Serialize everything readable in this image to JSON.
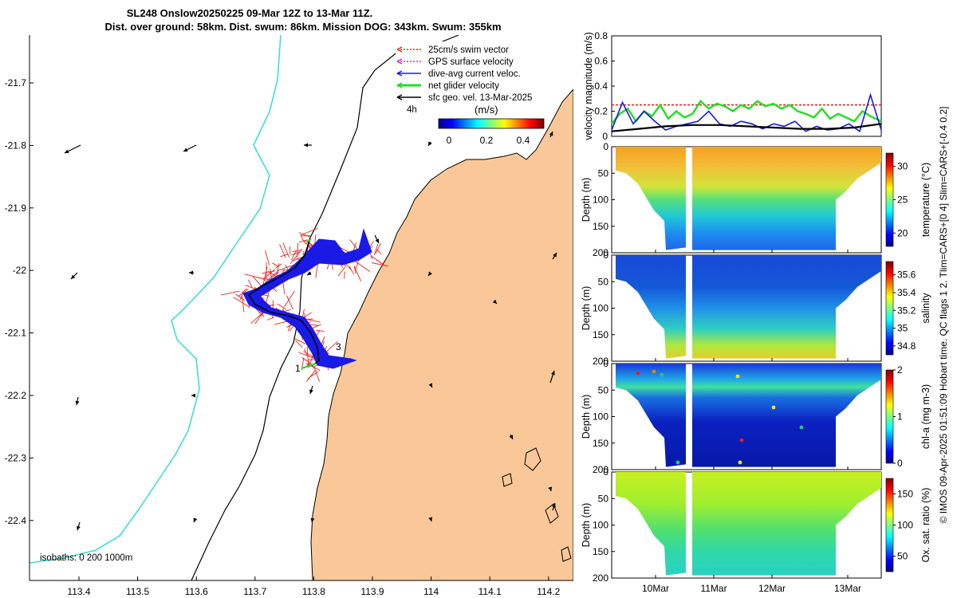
{
  "title": {
    "line1": "SL248 Onslow20250225 09-Mar 12Z to 13-Mar 11Z.",
    "line2": "Dist. over ground: 58km. Dist. swum: 86km. Mission DOG: 343km. Swum: 355km"
  },
  "footer": "© IMOS 09-Apr-2025 01:51:09 Hobart time. QC flags 1  2. Tlim=CARS+[0 4] Slim=CARS+[-0.4 0.2]",
  "map": {
    "x_ticks": [
      "113.4",
      "113.5",
      "113.6",
      "113.7",
      "113.8",
      "113.9",
      "114",
      "114.1",
      "114.2"
    ],
    "y_ticks": [
      "-21.7",
      "-21.8",
      "-21.9",
      "-22",
      "-22.1",
      "-22.2",
      "-22.3",
      "-22.4"
    ],
    "legend": [
      {
        "label": "25cm/s swim vector",
        "color": "#e8251e"
      },
      {
        "label": "GPS surface velocity",
        "color": "#e020e0"
      },
      {
        "label": "dive-avg current veloc.",
        "color": "#1a1ae6"
      },
      {
        "label": "net glider velocity",
        "color": "#22dd22"
      },
      {
        "label": "sfc geo. vel. 13-Mar-2025",
        "color": "#000000"
      }
    ],
    "interval_label": "4h",
    "colorbar_title": "(m/s)",
    "colorbar_ticks": [
      "0",
      "0.2",
      "0.4"
    ],
    "isobath_label": "isobaths: 0   200  1000m",
    "track_markers": [
      "1",
      "3"
    ],
    "land_color": "#fac898",
    "isobath_color": "#35dcd6"
  },
  "chart_data": [
    {
      "type": "line",
      "ylabel": "velocity magnitude (m/s)",
      "ylim": [
        0,
        0.8
      ],
      "y_ticks": [
        "0",
        "0.2",
        "0.4",
        "0.6",
        "0.8"
      ],
      "series": [
        {
          "name": "25cm/s swim vector",
          "color": "#e8251e",
          "x": [
            0,
            1
          ],
          "values": [
            0.25,
            0.25
          ]
        },
        {
          "name": "net glider velocity",
          "color": "#22dd22",
          "x": [
            0,
            0.03,
            0.06,
            0.09,
            0.12,
            0.15,
            0.18,
            0.21,
            0.24,
            0.27,
            0.3,
            0.33,
            0.36,
            0.39,
            0.42,
            0.45,
            0.48,
            0.51,
            0.54,
            0.57,
            0.6,
            0.63,
            0.66,
            0.69,
            0.72,
            0.75,
            0.78,
            0.81,
            0.84,
            0.87,
            0.9,
            0.93,
            0.96,
            1
          ],
          "values": [
            0.1,
            0.18,
            0.22,
            0.12,
            0.2,
            0.16,
            0.25,
            0.14,
            0.2,
            0.15,
            0.18,
            0.28,
            0.22,
            0.26,
            0.24,
            0.2,
            0.25,
            0.22,
            0.28,
            0.24,
            0.26,
            0.22,
            0.25,
            0.2,
            0.18,
            0.15,
            0.22,
            0.14,
            0.18,
            0.15,
            0.12,
            0.2,
            0.16,
            0.12
          ]
        },
        {
          "name": "dive-avg current veloc.",
          "color": "#1a1ae6",
          "x": [
            0,
            0.04,
            0.08,
            0.12,
            0.16,
            0.2,
            0.24,
            0.28,
            0.32,
            0.36,
            0.4,
            0.44,
            0.48,
            0.52,
            0.56,
            0.6,
            0.64,
            0.68,
            0.72,
            0.76,
            0.8,
            0.84,
            0.88,
            0.92,
            0.96,
            1
          ],
          "values": [
            0.05,
            0.27,
            0.1,
            0.2,
            0.12,
            0.05,
            0.08,
            0.1,
            0.12,
            0.2,
            0.1,
            0.08,
            0.12,
            0.1,
            0.06,
            0.1,
            0.08,
            0.12,
            0.04,
            0.08,
            0.05,
            0.06,
            0.1,
            0.04,
            0.33,
            0.05
          ]
        },
        {
          "name": "sfc geo. vel. 13-Mar-2025",
          "color": "#000000",
          "x": [
            0,
            0.1,
            0.2,
            0.3,
            0.4,
            0.5,
            0.6,
            0.7,
            0.8,
            0.9,
            1
          ],
          "values": [
            0.04,
            0.06,
            0.08,
            0.09,
            0.09,
            0.08,
            0.07,
            0.06,
            0.06,
            0.07,
            0.1
          ]
        }
      ]
    },
    {
      "type": "heatmap",
      "ylabel": "Depth (m)",
      "y_ticks": [
        "0",
        "50",
        "100",
        "150",
        "200"
      ],
      "colorbar_label": "temperature (°C)",
      "colorbar_ticks": [
        "20",
        "25",
        "30"
      ],
      "clim": [
        18,
        32
      ]
    },
    {
      "type": "heatmap",
      "ylabel": "Depth (m)",
      "y_ticks": [
        "0",
        "50",
        "100",
        "150",
        "200"
      ],
      "colorbar_label": "salinity",
      "colorbar_ticks": [
        "34.8",
        "35",
        "35.2",
        "35.4",
        "35.6"
      ],
      "clim": [
        34.7,
        35.75
      ]
    },
    {
      "type": "heatmap",
      "ylabel": "Depth (m)",
      "y_ticks": [
        "0",
        "50",
        "100",
        "150",
        "200"
      ],
      "colorbar_label": "chl-a (mg m-3)",
      "colorbar_ticks": [
        "0",
        "1",
        "2"
      ],
      "clim": [
        0,
        2
      ]
    },
    {
      "type": "heatmap",
      "ylabel": "Depth (m)",
      "y_ticks": [
        "0",
        "50",
        "100",
        "150",
        "200"
      ],
      "colorbar_label": "Ox. sat. ratio (%)",
      "colorbar_ticks": [
        "50",
        "100",
        "150"
      ],
      "clim": [
        25,
        175
      ]
    }
  ],
  "time_ticks": [
    "10Mar",
    "11Mar",
    "12Mar",
    "13Mar"
  ]
}
